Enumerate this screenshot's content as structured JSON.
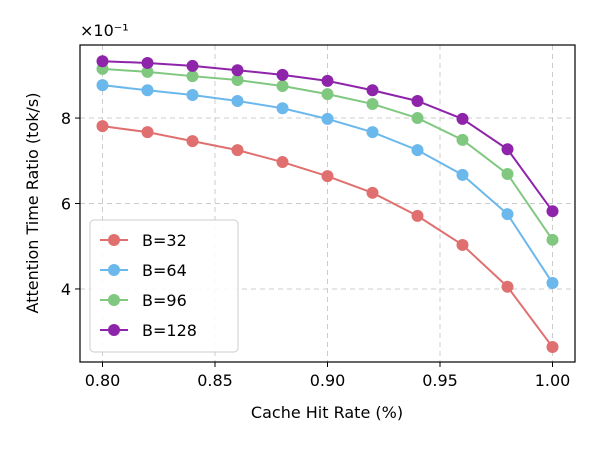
{
  "chart_data": {
    "type": "line",
    "y_offset_label": "×10⁻¹",
    "xlabel": "Cache Hit Rate (%)",
    "ylabel": "Attention Time Ratio (tok/s)",
    "x": [
      0.8,
      0.82,
      0.84,
      0.86,
      0.88,
      0.9,
      0.92,
      0.94,
      0.96,
      0.98,
      1.0
    ],
    "series": [
      {
        "name": "B=32",
        "color": "#e07070",
        "values": [
          7.81,
          7.67,
          7.46,
          7.25,
          6.97,
          6.64,
          6.25,
          5.71,
          5.03,
          4.05,
          2.64
        ]
      },
      {
        "name": "B=64",
        "color": "#6bb8ec",
        "values": [
          8.77,
          8.65,
          8.54,
          8.4,
          8.23,
          7.98,
          7.67,
          7.25,
          6.67,
          5.75,
          4.14
        ]
      },
      {
        "name": "B=96",
        "color": "#80c880",
        "values": [
          9.15,
          9.08,
          8.98,
          8.89,
          8.75,
          8.56,
          8.33,
          8.0,
          7.49,
          6.69,
          5.15
        ]
      },
      {
        "name": "B=128",
        "color": "#8e24aa",
        "values": [
          9.33,
          9.29,
          9.22,
          9.12,
          9.01,
          8.87,
          8.65,
          8.4,
          7.98,
          7.27,
          5.82
        ]
      }
    ],
    "xlim": [
      0.79,
      1.01
    ],
    "ylim": [
      2.29,
      9.71
    ],
    "xticks": [
      {
        "value": 0.8,
        "label": "0.80"
      },
      0.85,
      {
        "value": 0.9,
        "label": "0.90"
      },
      0.95,
      {
        "value": 1.0,
        "label": "1.00"
      }
    ],
    "yticks": [
      4,
      6,
      8
    ],
    "grid": true,
    "legend": "lower left"
  }
}
